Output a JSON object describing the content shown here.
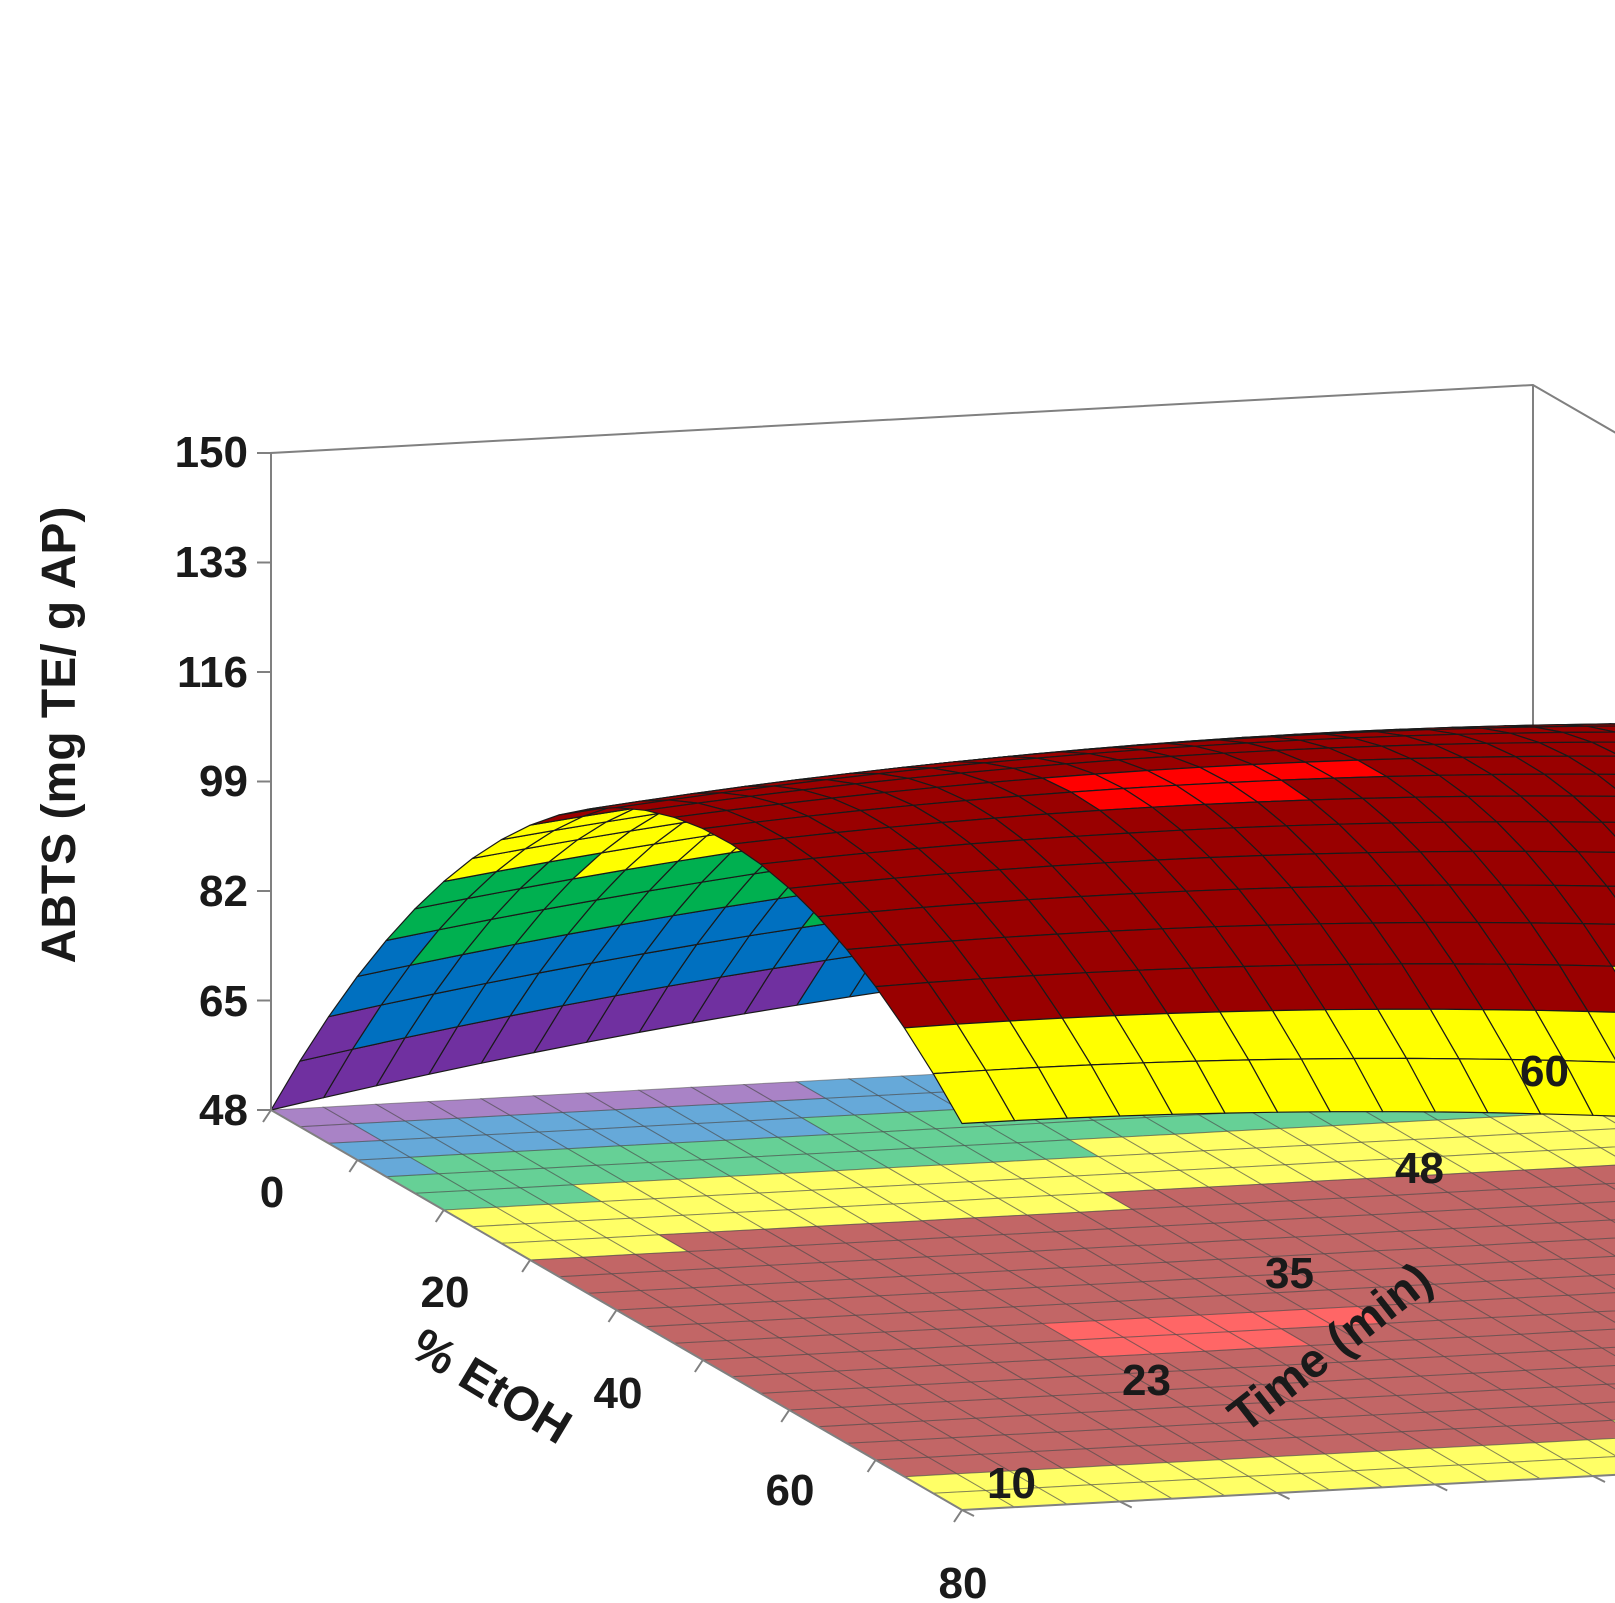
{
  "chart_data": {
    "type": "surface3d",
    "title": "",
    "zlabel": "ABTS (mg TE/ g AP)",
    "xlabel": "% EtOH",
    "ylabel": "Time (min)",
    "z_ticks": [
      "48",
      "65",
      "82",
      "99",
      "116",
      "133",
      "150"
    ],
    "x_ticks": [
      "0",
      "20",
      "40",
      "60",
      "80"
    ],
    "y_ticks": [
      "10",
      "23",
      "35",
      "48",
      "60"
    ],
    "xlim": [
      0,
      80
    ],
    "ylim": [
      10,
      60
    ],
    "zlim": [
      48,
      150
    ],
    "z_tick_values": [
      48,
      65,
      82,
      99,
      116,
      133,
      150
    ],
    "x_tick_values": [
      0,
      20,
      40,
      60,
      80
    ],
    "y_tick_values": [
      10,
      23,
      35,
      48,
      60
    ],
    "color_bands": [
      {
        "from": 48,
        "to": 65,
        "color": "#7030a0"
      },
      {
        "from": 65,
        "to": 82,
        "color": "#0070c0"
      },
      {
        "from": 82,
        "to": 99,
        "color": "#00b050"
      },
      {
        "from": 99,
        "to": 116,
        "color": "#ffff00"
      },
      {
        "from": 116,
        "to": 133,
        "color": "#990000"
      },
      {
        "from": 133,
        "to": 150,
        "color": "#ff0000"
      }
    ],
    "grid": true
  }
}
